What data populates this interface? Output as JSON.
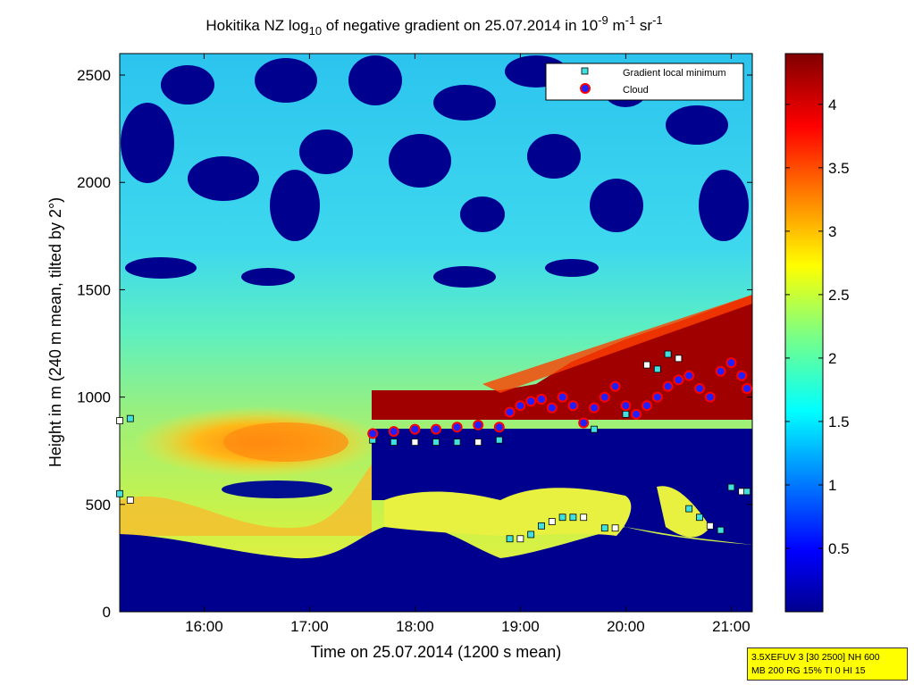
{
  "chart_data": {
    "type": "heatmap",
    "title": {
      "p1": "Hokitika NZ log",
      "p1_sub": "10",
      "p2": " of negative gradient on 25.07.2014 in 10",
      "p2_sup": "-9",
      "p3": " m",
      "p3_sup": "-1",
      "p4": " sr",
      "p4_sup": "-1"
    },
    "xlabel": "Time on 25.07.2014 (1200 s mean)",
    "ylabel": "Height in m (240 m mean, tilted by 2°)",
    "x_range_hours": [
      15.2,
      21.2
    ],
    "x_ticks": [
      {
        "value": 16,
        "label": "16:00"
      },
      {
        "value": 17,
        "label": "17:00"
      },
      {
        "value": 18,
        "label": "18:00"
      },
      {
        "value": 19,
        "label": "19:00"
      },
      {
        "value": 20,
        "label": "20:00"
      },
      {
        "value": 21,
        "label": "21:00"
      }
    ],
    "y_range": [
      0,
      2600
    ],
    "y_ticks": [
      0,
      500,
      1000,
      1500,
      2000,
      2500
    ],
    "colorbar": {
      "range": [
        0,
        4.4
      ],
      "ticks": [
        0.5,
        1,
        1.5,
        2,
        2.5,
        3,
        3.5,
        4
      ],
      "colormap": "jet"
    },
    "legend": {
      "position": "top-right",
      "entries": [
        {
          "label": "Gradient local minimum",
          "marker": "square",
          "color": "#40e0e0"
        },
        {
          "label": "Cloud",
          "marker": "circle",
          "color": "#ff0000"
        }
      ]
    },
    "series": [
      {
        "name": "Cloud",
        "x": [
          17.6,
          17.8,
          18.0,
          18.2,
          18.4,
          18.6,
          18.8,
          18.9,
          19.0,
          19.1,
          19.2,
          19.3,
          19.4,
          19.5,
          19.6,
          19.7,
          19.8,
          19.9,
          20.0,
          20.1,
          20.2,
          20.3,
          20.4,
          20.5,
          20.6,
          20.7,
          20.8,
          20.9,
          21.0,
          21.1,
          21.15
        ],
        "y": [
          830,
          840,
          850,
          850,
          860,
          870,
          860,
          930,
          960,
          980,
          990,
          950,
          1000,
          960,
          880,
          950,
          1000,
          1050,
          960,
          920,
          960,
          1000,
          1050,
          1080,
          1100,
          1040,
          1000,
          1120,
          1160,
          1100,
          1040
        ]
      },
      {
        "name": "Gradient local minimum",
        "x": [
          15.2,
          15.3,
          15.2,
          15.3,
          17.6,
          17.8,
          18.0,
          18.2,
          18.4,
          18.6,
          18.8,
          18.9,
          19.0,
          19.1,
          19.2,
          19.3,
          19.4,
          19.5,
          19.6,
          19.7,
          19.8,
          19.9,
          20.0,
          20.1,
          20.2,
          20.3,
          20.4,
          20.5,
          20.6,
          20.7,
          20.8,
          20.9,
          21.0,
          21.1,
          21.15
        ],
        "y": [
          890,
          900,
          550,
          520,
          800,
          790,
          790,
          790,
          790,
          790,
          800,
          340,
          340,
          360,
          400,
          420,
          440,
          440,
          440,
          850,
          390,
          390,
          920,
          920,
          1150,
          1130,
          1200,
          1180,
          480,
          440,
          400,
          380,
          580,
          560,
          560
        ]
      }
    ]
  },
  "info_box": {
    "line1": "3.5XEFUV 3 [30 2500] NH 600",
    "line2": "MB 200 RG 15% TI 0 HI 15"
  }
}
